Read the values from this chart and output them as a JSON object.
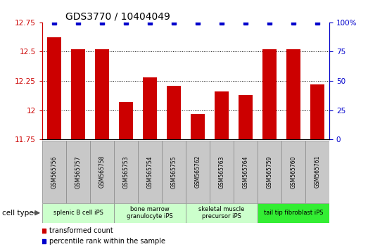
{
  "title": "GDS3770 / 10404049",
  "samples": [
    "GSM565756",
    "GSM565757",
    "GSM565758",
    "GSM565753",
    "GSM565754",
    "GSM565755",
    "GSM565762",
    "GSM565763",
    "GSM565764",
    "GSM565759",
    "GSM565760",
    "GSM565761"
  ],
  "bar_values": [
    12.62,
    12.52,
    12.52,
    12.07,
    12.28,
    12.21,
    11.97,
    12.16,
    12.13,
    12.52,
    12.52,
    12.22
  ],
  "percentile_values": [
    100,
    100,
    100,
    100,
    100,
    100,
    100,
    100,
    100,
    100,
    100,
    100
  ],
  "bar_color": "#cc0000",
  "percentile_color": "#0000cc",
  "ylim_left": [
    11.75,
    12.75
  ],
  "ylim_right": [
    0,
    100
  ],
  "yticks_left": [
    11.75,
    12.0,
    12.25,
    12.5,
    12.75
  ],
  "yticks_right": [
    0,
    25,
    50,
    75,
    100
  ],
  "ytick_labels_left": [
    "11.75",
    "12",
    "12.25",
    "12.5",
    "12.75"
  ],
  "ytick_labels_right": [
    "0",
    "25",
    "50",
    "75",
    "100%"
  ],
  "cell_type_groups": [
    {
      "label": "splenic B cell iPS",
      "start": 0,
      "end": 3,
      "color": "#ccffcc"
    },
    {
      "label": "bone marrow\ngranulocyte iPS",
      "start": 3,
      "end": 6,
      "color": "#ccffcc"
    },
    {
      "label": "skeletal muscle\nprecursor iPS",
      "start": 6,
      "end": 9,
      "color": "#ccffcc"
    },
    {
      "label": "tail tip fibroblast iPS",
      "start": 9,
      "end": 12,
      "color": "#33ee33"
    }
  ],
  "legend_red_label": "transformed count",
  "legend_blue_label": "percentile rank within the sample",
  "cell_type_label": "cell type",
  "background_color": "#ffffff",
  "tick_label_color_left": "#cc0000",
  "tick_label_color_right": "#0000cc",
  "grid_yticks": [
    12.0,
    12.25,
    12.5
  ],
  "bar_width": 0.6,
  "sample_box_color": "#c8c8c8",
  "figsize": [
    5.23,
    3.54
  ],
  "dpi": 100
}
